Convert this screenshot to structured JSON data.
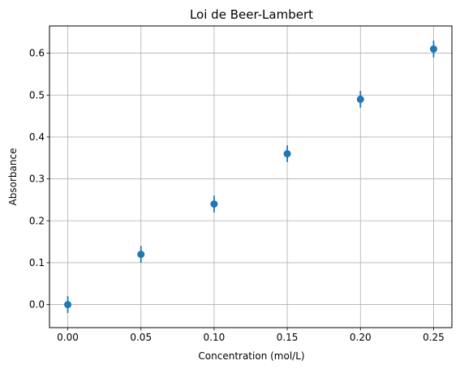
{
  "chart_data": {
    "type": "scatter",
    "title": "Loi de Beer-Lambert",
    "xlabel": "Concentration (mol/L)",
    "ylabel": "Absorbance",
    "x": [
      0.0,
      0.05,
      0.1,
      0.15,
      0.2,
      0.25
    ],
    "series": [
      {
        "values": [
          0.0,
          0.12,
          0.24,
          0.36,
          0.49,
          0.61
        ],
        "error": [
          0.02,
          0.02,
          0.02,
          0.02,
          0.02,
          0.02
        ],
        "color": "#1f77b4"
      }
    ],
    "xlim": [
      -0.0125,
      0.2625
    ],
    "ylim": [
      -0.055,
      0.665
    ],
    "xticks": [
      "0.00",
      "0.05",
      "0.10",
      "0.15",
      "0.20",
      "0.25"
    ],
    "yticks": [
      "0.0",
      "0.1",
      "0.2",
      "0.3",
      "0.4",
      "0.5",
      "0.6"
    ],
    "grid": true,
    "grid_color": "#b0b0b0",
    "legend": false
  }
}
